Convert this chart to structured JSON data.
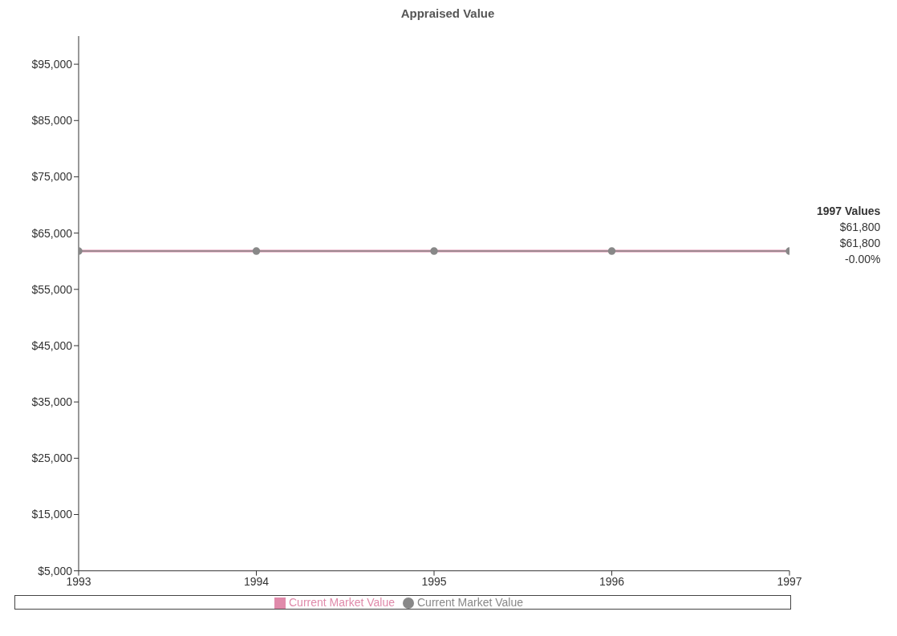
{
  "chart_data": {
    "type": "line",
    "title": "Appraised Value",
    "x": [
      1993,
      1994,
      1995,
      1996,
      1997
    ],
    "series": [
      {
        "name": "Current Market Value",
        "color": "#e08aaa",
        "values": [
          61800,
          61800,
          61800,
          61800,
          61800
        ],
        "marker": "none"
      },
      {
        "name": "Current Market Value",
        "color": "#888888",
        "values": [
          61800,
          61800,
          61800,
          61800,
          61800
        ],
        "marker": "circle"
      }
    ],
    "xlim": [
      1993,
      1997
    ],
    "xticks": [
      1993,
      1994,
      1995,
      1996,
      1997
    ],
    "ylim": [
      5000,
      100000
    ],
    "yticks": [
      {
        "value": 5000,
        "label": "$5,000"
      },
      {
        "value": 15000,
        "label": "$15,000"
      },
      {
        "value": 25000,
        "label": "$25,000"
      },
      {
        "value": 35000,
        "label": "$35,000"
      },
      {
        "value": 45000,
        "label": "$45,000"
      },
      {
        "value": 55000,
        "label": "$55,000"
      },
      {
        "value": 65000,
        "label": "$65,000"
      },
      {
        "value": 75000,
        "label": "$75,000"
      },
      {
        "value": 85000,
        "label": "$85,000"
      },
      {
        "value": 95000,
        "label": "$95,000"
      }
    ],
    "grid": false,
    "legend": "bottom",
    "line_style": "solid",
    "annotations": [
      "1997 Values",
      "$61,800",
      "$61,800",
      "-0.00%"
    ]
  }
}
